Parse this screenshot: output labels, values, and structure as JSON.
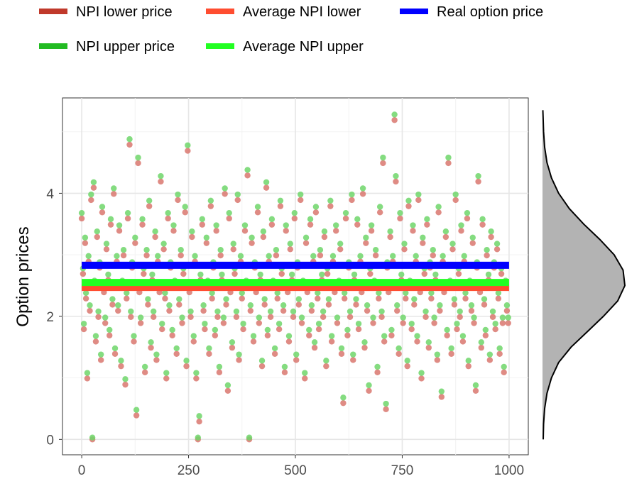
{
  "chart_data": {
    "type": "scatter",
    "title": "",
    "xlabel": "",
    "ylabel": "Option prices",
    "xlim": [
      -45,
      1045
    ],
    "ylim": [
      -0.25,
      5.55
    ],
    "x_ticks": [
      0,
      250,
      500,
      750,
      1000
    ],
    "x_tick_labels": [
      "0",
      "250",
      "500",
      "750",
      "1000"
    ],
    "y_ticks": [
      0,
      2,
      4
    ],
    "y_tick_labels": [
      "0",
      "2",
      "4"
    ],
    "grid": true,
    "legend_position": "top",
    "legend": [
      {
        "label": "NPI lower price",
        "color": "#c0392b"
      },
      {
        "label": "Average NPI lower",
        "color": "#ff4d30"
      },
      {
        "label": "Real option price",
        "color": "#0000ff"
      },
      {
        "label": "NPI upper price",
        "color": "#22bb22"
      },
      {
        "label": "Average NPI upper",
        "color": "#22ff22"
      }
    ],
    "series": [
      {
        "name": "NPI lower price",
        "color": "#c0392b",
        "marker_color": "#d9776e",
        "kind": "points",
        "offset": -0.06
      },
      {
        "name": "NPI upper price",
        "color": "#22bb22",
        "marker_color": "#6fd66a",
        "kind": "points",
        "offset": 0.03
      },
      {
        "name": "Average NPI lower",
        "color": "#ff4d30",
        "kind": "hline",
        "y": 2.47
      },
      {
        "name": "Average NPI upper",
        "color": "#22ff22",
        "kind": "hline",
        "y": 2.55
      },
      {
        "name": "Real option price",
        "color": "#0000ff",
        "kind": "hline",
        "y": 2.83
      }
    ],
    "points": [
      [
        0,
        3.65
      ],
      [
        3,
        2.75
      ],
      [
        5,
        1.85
      ],
      [
        8,
        3.25
      ],
      [
        10,
        2.35
      ],
      [
        13,
        1.05
      ],
      [
        16,
        2.95
      ],
      [
        19,
        2.15
      ],
      [
        22,
        3.95
      ],
      [
        25,
        0.0
      ],
      [
        28,
        4.15
      ],
      [
        30,
        2.55
      ],
      [
        33,
        1.65
      ],
      [
        36,
        3.35
      ],
      [
        39,
        2.05
      ],
      [
        42,
        2.85
      ],
      [
        45,
        1.35
      ],
      [
        48,
        3.75
      ],
      [
        52,
        2.45
      ],
      [
        55,
        1.95
      ],
      [
        58,
        3.15
      ],
      [
        62,
        2.65
      ],
      [
        65,
        1.75
      ],
      [
        68,
        3.55
      ],
      [
        72,
        2.25
      ],
      [
        75,
        4.05
      ],
      [
        78,
        1.45
      ],
      [
        82,
        2.95
      ],
      [
        85,
        2.15
      ],
      [
        88,
        3.45
      ],
      [
        92,
        1.25
      ],
      [
        95,
        2.55
      ],
      [
        98,
        3.05
      ],
      [
        102,
        0.95
      ],
      [
        105,
        2.35
      ],
      [
        108,
        3.65
      ],
      [
        112,
        4.85
      ],
      [
        115,
        2.05
      ],
      [
        118,
        2.85
      ],
      [
        122,
        1.65
      ],
      [
        125,
        3.25
      ],
      [
        128,
        0.45
      ],
      [
        132,
        4.55
      ],
      [
        135,
        2.45
      ],
      [
        138,
        1.95
      ],
      [
        142,
        3.55
      ],
      [
        145,
        2.75
      ],
      [
        148,
        1.15
      ],
      [
        152,
        3.05
      ],
      [
        155,
        2.25
      ],
      [
        158,
        3.85
      ],
      [
        162,
        1.55
      ],
      [
        165,
        2.65
      ],
      [
        168,
        2.05
      ],
      [
        172,
        3.35
      ],
      [
        175,
        1.35
      ],
      [
        178,
        2.95
      ],
      [
        182,
        2.45
      ],
      [
        185,
        4.25
      ],
      [
        188,
        1.85
      ],
      [
        192,
        3.15
      ],
      [
        195,
        2.35
      ],
      [
        198,
        1.05
      ],
      [
        202,
        3.65
      ],
      [
        205,
        2.15
      ],
      [
        208,
        2.85
      ],
      [
        212,
        1.75
      ],
      [
        215,
        3.45
      ],
      [
        218,
        2.55
      ],
      [
        222,
        1.45
      ],
      [
        225,
        3.95
      ],
      [
        228,
        2.25
      ],
      [
        232,
        3.05
      ],
      [
        235,
        1.95
      ],
      [
        238,
        2.75
      ],
      [
        242,
        3.75
      ],
      [
        245,
        1.25
      ],
      [
        248,
        4.75
      ],
      [
        252,
        2.45
      ],
      [
        255,
        2.05
      ],
      [
        258,
        3.35
      ],
      [
        262,
        1.65
      ],
      [
        265,
        2.95
      ],
      [
        268,
        1.05
      ],
      [
        272,
        0.0
      ],
      [
        275,
        0.35
      ],
      [
        278,
        2.65
      ],
      [
        282,
        3.55
      ],
      [
        285,
        2.15
      ],
      [
        288,
        1.85
      ],
      [
        292,
        3.25
      ],
      [
        295,
        2.55
      ],
      [
        298,
        1.45
      ],
      [
        302,
        3.85
      ],
      [
        305,
        2.35
      ],
      [
        308,
        2.85
      ],
      [
        312,
        1.75
      ],
      [
        315,
        3.45
      ],
      [
        318,
        2.05
      ],
      [
        322,
        1.15
      ],
      [
        325,
        3.05
      ],
      [
        328,
        2.65
      ],
      [
        332,
        1.95
      ],
      [
        335,
        4.05
      ],
      [
        338,
        2.25
      ],
      [
        342,
        0.85
      ],
      [
        345,
        3.65
      ],
      [
        348,
        2.45
      ],
      [
        352,
        1.55
      ],
      [
        355,
        3.15
      ],
      [
        358,
        2.75
      ],
      [
        362,
        2.05
      ],
      [
        365,
        3.95
      ],
      [
        368,
        1.35
      ],
      [
        372,
        2.95
      ],
      [
        375,
        2.35
      ],
      [
        378,
        1.85
      ],
      [
        382,
        3.45
      ],
      [
        385,
        2.55
      ],
      [
        388,
        4.35
      ],
      [
        392,
        0.0
      ],
      [
        395,
        2.15
      ],
      [
        398,
        3.25
      ],
      [
        402,
        1.65
      ],
      [
        405,
        2.85
      ],
      [
        408,
        2.45
      ],
      [
        412,
        3.75
      ],
      [
        415,
        1.95
      ],
      [
        418,
        2.65
      ],
      [
        422,
        1.25
      ],
      [
        425,
        3.35
      ],
      [
        428,
        2.25
      ],
      [
        432,
        4.15
      ],
      [
        435,
        1.75
      ],
      [
        438,
        2.95
      ],
      [
        442,
        2.05
      ],
      [
        445,
        3.55
      ],
      [
        448,
        2.55
      ],
      [
        452,
        1.45
      ],
      [
        455,
        3.05
      ],
      [
        458,
        2.35
      ],
      [
        462,
        1.85
      ],
      [
        465,
        3.85
      ],
      [
        468,
        2.75
      ],
      [
        472,
        2.15
      ],
      [
        475,
        1.15
      ],
      [
        478,
        3.45
      ],
      [
        482,
        2.45
      ],
      [
        485,
        1.65
      ],
      [
        488,
        3.15
      ],
      [
        492,
        2.65
      ],
      [
        495,
        2.05
      ],
      [
        498,
        3.65
      ],
      [
        502,
        1.35
      ],
      [
        505,
        2.85
      ],
      [
        508,
        2.25
      ],
      [
        512,
        3.95
      ],
      [
        515,
        1.95
      ],
      [
        518,
        2.55
      ],
      [
        522,
        1.05
      ],
      [
        525,
        3.25
      ],
      [
        528,
        2.45
      ],
      [
        532,
        1.75
      ],
      [
        535,
        3.55
      ],
      [
        538,
        2.15
      ],
      [
        542,
        2.95
      ],
      [
        545,
        1.55
      ],
      [
        548,
        3.75
      ],
      [
        552,
        2.35
      ],
      [
        555,
        1.85
      ],
      [
        558,
        3.05
      ],
      [
        562,
        2.65
      ],
      [
        565,
        2.05
      ],
      [
        568,
        3.35
      ],
      [
        572,
        1.25
      ],
      [
        575,
        2.75
      ],
      [
        578,
        2.25
      ],
      [
        582,
        3.85
      ],
      [
        585,
        1.65
      ],
      [
        588,
        2.95
      ],
      [
        592,
        2.45
      ],
      [
        595,
        3.45
      ],
      [
        598,
        1.95
      ],
      [
        602,
        2.55
      ],
      [
        605,
        3.15
      ],
      [
        608,
        1.45
      ],
      [
        612,
        0.65
      ],
      [
        615,
        2.35
      ],
      [
        618,
        3.65
      ],
      [
        622,
        1.75
      ],
      [
        625,
        2.85
      ],
      [
        628,
        2.05
      ],
      [
        632,
        3.95
      ],
      [
        635,
        1.35
      ],
      [
        638,
        2.65
      ],
      [
        642,
        2.25
      ],
      [
        645,
        3.55
      ],
      [
        648,
        1.85
      ],
      [
        652,
        2.95
      ],
      [
        655,
        2.45
      ],
      [
        658,
        4.05
      ],
      [
        662,
        1.55
      ],
      [
        665,
        3.25
      ],
      [
        668,
        2.15
      ],
      [
        672,
        0.85
      ],
      [
        675,
        2.75
      ],
      [
        678,
        3.45
      ],
      [
        682,
        1.95
      ],
      [
        685,
        2.55
      ],
      [
        688,
        3.05
      ],
      [
        692,
        1.15
      ],
      [
        695,
        2.35
      ],
      [
        698,
        3.75
      ],
      [
        702,
        2.05
      ],
      [
        705,
        4.55
      ],
      [
        708,
        1.65
      ],
      [
        712,
        0.55
      ],
      [
        715,
        2.85
      ],
      [
        718,
        2.45
      ],
      [
        722,
        3.35
      ],
      [
        725,
        1.75
      ],
      [
        728,
        2.95
      ],
      [
        732,
        5.25
      ],
      [
        735,
        4.25
      ],
      [
        738,
        2.15
      ],
      [
        742,
        1.45
      ],
      [
        745,
        3.65
      ],
      [
        748,
        2.65
      ],
      [
        752,
        1.95
      ],
      [
        755,
        3.15
      ],
      [
        758,
        2.35
      ],
      [
        762,
        1.25
      ],
      [
        765,
        3.85
      ],
      [
        768,
        2.55
      ],
      [
        772,
        1.85
      ],
      [
        775,
        3.45
      ],
      [
        778,
        2.25
      ],
      [
        782,
        2.95
      ],
      [
        785,
        1.65
      ],
      [
        788,
        3.95
      ],
      [
        792,
        2.45
      ],
      [
        795,
        1.05
      ],
      [
        798,
        3.25
      ],
      [
        802,
        2.75
      ],
      [
        805,
        2.05
      ],
      [
        808,
        3.55
      ],
      [
        812,
        1.55
      ],
      [
        815,
        2.85
      ],
      [
        818,
        2.35
      ],
      [
        822,
        3.05
      ],
      [
        825,
        1.95
      ],
      [
        828,
        2.65
      ],
      [
        832,
        1.35
      ],
      [
        835,
        3.75
      ],
      [
        838,
        2.15
      ],
      [
        842,
        0.75
      ],
      [
        845,
        2.95
      ],
      [
        848,
        2.45
      ],
      [
        852,
        3.35
      ],
      [
        855,
        1.75
      ],
      [
        858,
        4.55
      ],
      [
        862,
        2.55
      ],
      [
        865,
        1.45
      ],
      [
        868,
        3.15
      ],
      [
        872,
        2.25
      ],
      [
        875,
        3.95
      ],
      [
        878,
        1.85
      ],
      [
        882,
        2.75
      ],
      [
        885,
        2.05
      ],
      [
        888,
        3.45
      ],
      [
        892,
        1.65
      ],
      [
        895,
        2.95
      ],
      [
        898,
        2.35
      ],
      [
        902,
        3.65
      ],
      [
        905,
        1.25
      ],
      [
        908,
        2.55
      ],
      [
        912,
        2.15
      ],
      [
        915,
        3.25
      ],
      [
        918,
        1.95
      ],
      [
        922,
        0.85
      ],
      [
        925,
        2.85
      ],
      [
        928,
        4.25
      ],
      [
        932,
        2.45
      ],
      [
        935,
        1.55
      ],
      [
        938,
        3.55
      ],
      [
        942,
        2.25
      ],
      [
        945,
        1.75
      ],
      [
        948,
        3.05
      ],
      [
        952,
        2.65
      ],
      [
        955,
        1.35
      ],
      [
        958,
        3.35
      ],
      [
        962,
        2.05
      ],
      [
        965,
        2.85
      ],
      [
        968,
        1.85
      ],
      [
        972,
        3.15
      ],
      [
        975,
        2.35
      ],
      [
        978,
        1.45
      ],
      [
        982,
        2.75
      ],
      [
        985,
        1.95
      ],
      [
        988,
        1.15
      ],
      [
        992,
        2.55
      ],
      [
        995,
        2.15
      ],
      [
        998,
        1.95
      ]
    ],
    "density": [
      [
        0.0,
        0.004
      ],
      [
        0.25,
        0.006
      ],
      [
        0.5,
        0.012
      ],
      [
        0.75,
        0.025
      ],
      [
        1.0,
        0.05
      ],
      [
        1.25,
        0.09
      ],
      [
        1.5,
        0.16
      ],
      [
        1.75,
        0.25
      ],
      [
        2.0,
        0.34
      ],
      [
        2.25,
        0.42
      ],
      [
        2.5,
        0.46
      ],
      [
        2.75,
        0.45
      ],
      [
        3.0,
        0.4
      ],
      [
        3.25,
        0.32
      ],
      [
        3.5,
        0.23
      ],
      [
        3.75,
        0.15
      ],
      [
        4.0,
        0.09
      ],
      [
        4.25,
        0.05
      ],
      [
        4.5,
        0.025
      ],
      [
        4.75,
        0.012
      ],
      [
        5.0,
        0.006
      ],
      [
        5.25,
        0.003
      ],
      [
        5.35,
        0.002
      ]
    ]
  }
}
